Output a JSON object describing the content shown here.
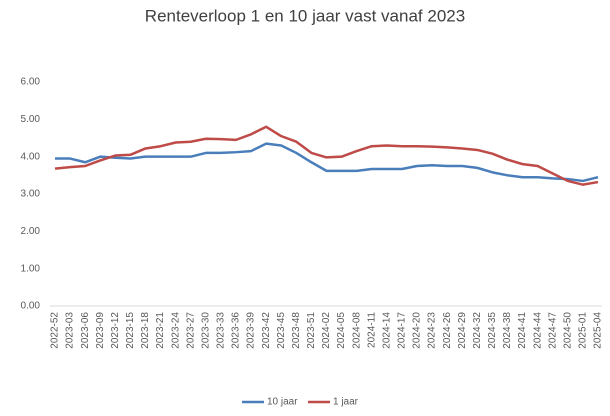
{
  "chart_data": {
    "type": "line",
    "title": "Renteverloop 1 en 10 jaar vast vanaf 2023",
    "categories": [
      "2022-52",
      "2023-03",
      "2023-06",
      "2023-09",
      "2023-12",
      "2023-15",
      "2023-18",
      "2023-21",
      "2023-24",
      "2023-27",
      "2023-30",
      "2023-33",
      "2023-36",
      "2023-39",
      "2023-42",
      "2023-45",
      "2023-48",
      "2023-51",
      "2024-02",
      "2024-05",
      "2024-08",
      "2024-11",
      "2024-14",
      "2024-17",
      "2024-20",
      "2024-23",
      "2024-26",
      "2024-29",
      "2024-32",
      "2024-35",
      "2024-38",
      "2024-41",
      "2024-44",
      "2024-47",
      "2024-50",
      "2025-01",
      "2025-04"
    ],
    "series": [
      {
        "name": "10 jaar",
        "color": "#4a7ebb",
        "values": [
          3.95,
          3.95,
          3.85,
          4.0,
          3.97,
          3.95,
          4.0,
          4.0,
          4.0,
          4.0,
          4.1,
          4.1,
          4.12,
          4.15,
          4.35,
          4.3,
          4.1,
          3.85,
          3.62,
          3.62,
          3.62,
          3.67,
          3.67,
          3.67,
          3.75,
          3.77,
          3.75,
          3.75,
          3.7,
          3.58,
          3.5,
          3.45,
          3.45,
          3.42,
          3.4,
          3.35,
          3.45
        ]
      },
      {
        "name": "1 jaar",
        "color": "#be4b48",
        "values": [
          3.68,
          3.72,
          3.75,
          3.9,
          4.03,
          4.05,
          4.22,
          4.28,
          4.38,
          4.4,
          4.48,
          4.47,
          4.45,
          4.6,
          4.8,
          4.55,
          4.4,
          4.1,
          3.98,
          4.0,
          4.15,
          4.28,
          4.3,
          4.28,
          4.28,
          4.27,
          4.25,
          4.22,
          4.18,
          4.08,
          3.92,
          3.8,
          3.75,
          3.55,
          3.35,
          3.25,
          3.32
        ]
      }
    ],
    "ylim": [
      0,
      6
    ],
    "yticks": [
      {
        "value": 0,
        "label": "0.00"
      },
      {
        "value": 1,
        "label": "1.00"
      },
      {
        "value": 2,
        "label": "2.00"
      },
      {
        "value": 3,
        "label": "3.00"
      },
      {
        "value": 4,
        "label": "4.00"
      },
      {
        "value": 5,
        "label": "5.00"
      },
      {
        "value": 6,
        "label": "6.00"
      }
    ],
    "legend": "bottom"
  }
}
